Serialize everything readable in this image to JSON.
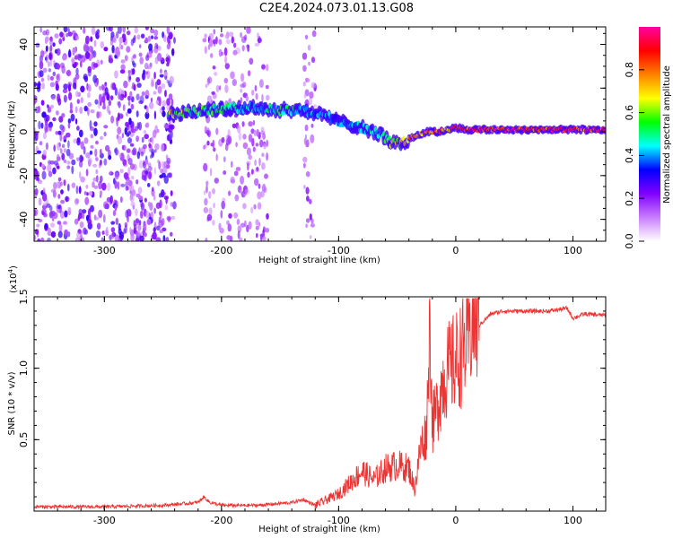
{
  "title": "C2E4.2024.073.01.13.G08",
  "chart_data": [
    {
      "type": "heatmap",
      "xlabel": "Height of straight line (km)",
      "ylabel": "Frequency (Hz)",
      "xlim": [
        -360,
        128
      ],
      "ylim": [
        -50,
        48
      ],
      "x_ticks": [
        -300,
        -200,
        -100,
        0,
        100
      ],
      "y_ticks": [
        -40,
        -20,
        0,
        20,
        40
      ],
      "colorbar": {
        "label": "Normalized spectral amplitude",
        "range": [
          0,
          1
        ],
        "ticks": [
          "0.0",
          "0.2",
          "0.4",
          "0.6",
          "0.8"
        ],
        "colors": [
          "#ffffff",
          "#c97dff",
          "#8000ff",
          "#0000ff",
          "#00ffff",
          "#00ff00",
          "#ffff00",
          "#ff8000",
          "#ff0000",
          "#ff00a0"
        ]
      },
      "ridge_line": {
        "x": [
          -245,
          -230,
          -210,
          -190,
          -170,
          -150,
          -130,
          -110,
          -95,
          -80,
          -65,
          -55,
          -45,
          -35,
          -25,
          -15,
          0,
          10,
          30,
          60,
          90,
          128
        ],
        "frequency": [
          8,
          9,
          10,
          11,
          11,
          10,
          10,
          7,
          4,
          2,
          -1,
          -5,
          -5,
          -2,
          0,
          0,
          2,
          1,
          1,
          1,
          1,
          1
        ],
        "amplitude": [
          0.7,
          0.65,
          0.55,
          0.5,
          0.45,
          0.55,
          0.45,
          0.4,
          0.4,
          0.45,
          0.5,
          0.6,
          0.8,
          0.85,
          0.9,
          0.9,
          0.9,
          0.95,
          0.95,
          0.95,
          0.95,
          0.95
        ]
      },
      "noise_regions_x": [
        [
          -360,
          -240
        ],
        [
          -215,
          -160
        ],
        [
          -130,
          -120
        ]
      ]
    },
    {
      "type": "line",
      "xlabel": "Height of straight line (km)",
      "ylabel": "SNR (10 * v/v)",
      "y_multiplier": "(x10",
      "y_multiplier_exp": "4",
      "y_multiplier_close": ")",
      "xlim": [
        -360,
        128
      ],
      "ylim": [
        0,
        1.5
      ],
      "x_ticks": [
        -300,
        -200,
        -100,
        0,
        100
      ],
      "y_ticks": [
        "0.5",
        "1.0",
        "1.5"
      ],
      "line_color": "#ee3333",
      "series": [
        {
          "x": [
            -360,
            -300,
            -250,
            -220,
            -215,
            -210,
            -200,
            -170,
            -140,
            -130,
            -120,
            -110,
            -100,
            -90,
            -80,
            -70,
            -60,
            -50,
            -40,
            -35,
            -30,
            -25,
            -22,
            -20,
            -15,
            -10,
            -5,
            0,
            5,
            10,
            15,
            20,
            30,
            40,
            60,
            80,
            95,
            100,
            110,
            128
          ],
          "y": [
            0.03,
            0.03,
            0.04,
            0.06,
            0.1,
            0.06,
            0.04,
            0.04,
            0.06,
            0.08,
            0.04,
            0.08,
            0.12,
            0.2,
            0.28,
            0.22,
            0.3,
            0.32,
            0.3,
            0.15,
            0.45,
            0.55,
            1.4,
            0.6,
            0.75,
            0.95,
            1.0,
            1.05,
            1.1,
            1.2,
            1.35,
            1.3,
            1.38,
            1.4,
            1.4,
            1.4,
            1.42,
            1.35,
            1.38,
            1.37
          ]
        }
      ]
    }
  ]
}
